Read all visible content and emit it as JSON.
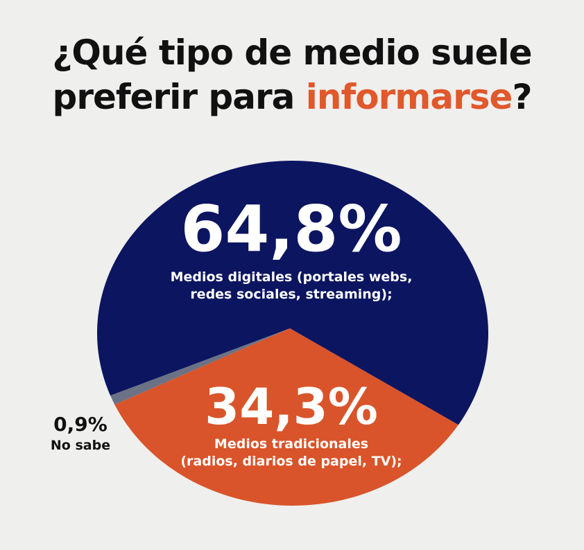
{
  "title": {
    "line1": "¿Qué tipo de medio suele",
    "line2_prefix": "preferir para ",
    "line2_accent": "informarse",
    "line2_suffix": "?"
  },
  "colors": {
    "background": "#efefed",
    "title": "#111111",
    "accent": "#e0582b"
  },
  "chart_data": {
    "type": "pie",
    "title": "¿Qué tipo de medio suele preferir para informarse?",
    "slices": [
      {
        "key": "digitales",
        "value": 64.8,
        "pct_label": "64,8%",
        "label_line1": "Medios digitales (portales webs,",
        "label_line2": "redes sociales, streaming);",
        "color": "#0c1560"
      },
      {
        "key": "tradicionales",
        "value": 34.3,
        "pct_label": "34,3%",
        "label_line1": "Medios tradicionales",
        "label_line2": "(radios, diarios de papel, TV);",
        "color": "#d9542a"
      },
      {
        "key": "nosabe",
        "value": 0.9,
        "pct_label": "0,9%",
        "label_line1": "No sabe",
        "label_line2": "",
        "color": "#6b7286"
      }
    ]
  }
}
